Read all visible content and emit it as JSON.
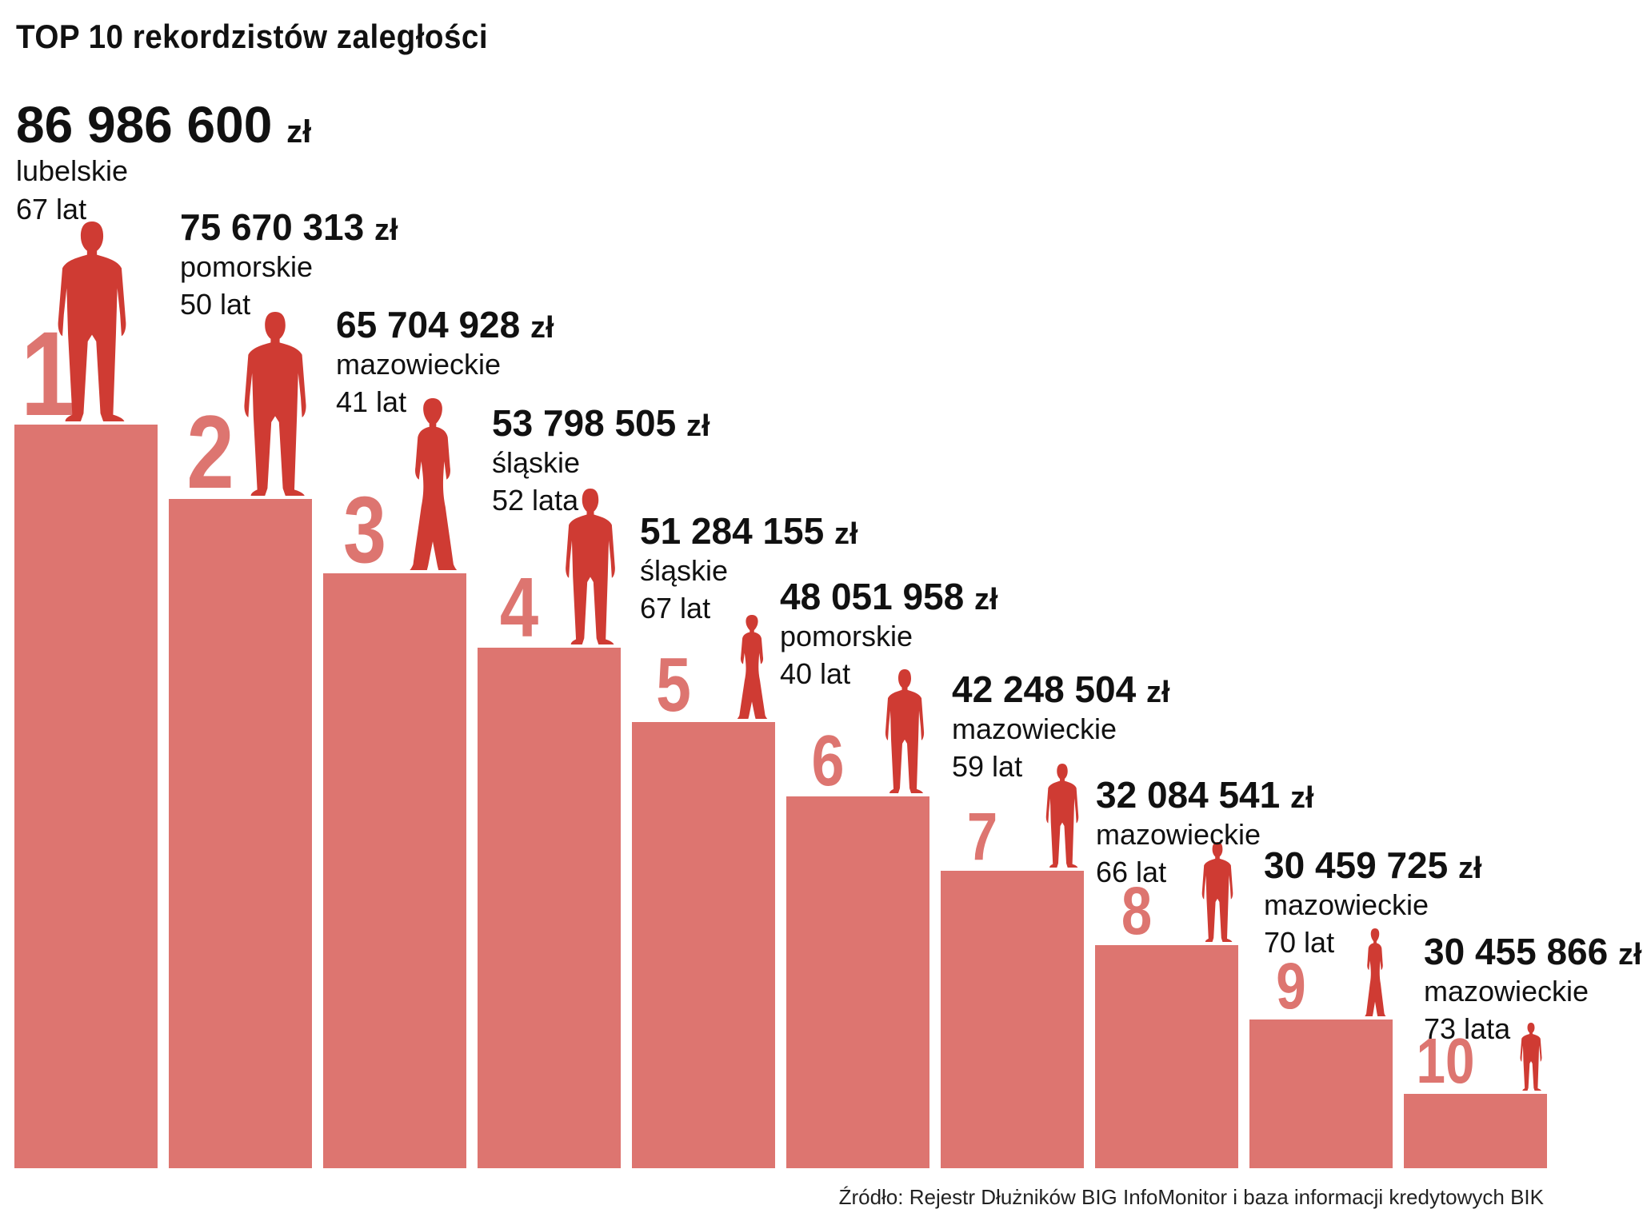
{
  "chart_data": {
    "type": "bar",
    "title": "TOP 10 rekordzistów zaległości",
    "source": "Źródło: Rejestr Dłużników BIG InfoMonitor i baza informacji kredytowych BIK",
    "colors": {
      "bar": "#dd7570",
      "figure": "#cf3b33",
      "text": "#111111"
    },
    "categories": [
      "1",
      "2",
      "3",
      "4",
      "5",
      "6",
      "7",
      "8",
      "9",
      "10"
    ],
    "values": [
      86986600,
      75670313,
      65704928,
      53798505,
      51284155,
      48051958,
      42248504,
      32084541,
      30459725,
      30455866
    ],
    "amount_labels": [
      "86 986 600",
      "75 670 313",
      "65 704 928",
      "53 798 505",
      "51 284 155",
      "48 051 958",
      "42 248 504",
      "32 084 541",
      "30 459 725",
      "30 455 866"
    ],
    "currency": "zł",
    "regions": [
      "lubelskie",
      "pomorskie",
      "mazowieckie",
      "śląskie",
      "śląskie",
      "pomorskie",
      "mazowieckie",
      "mazowieckie",
      "mazowieckie",
      "mazowieckie"
    ],
    "ages": [
      "67 lat",
      "50 lat",
      "41 lat",
      "52 lata",
      "67 lat",
      "40 lat",
      "59 lat",
      "66 lat",
      "70 lat",
      "73 lata"
    ],
    "figures": [
      "man-silhouette-icon",
      "man-silhouette-icon",
      "woman-silhouette-icon",
      "man-silhouette-icon",
      "woman-silhouette-icon",
      "man-silhouette-icon",
      "man-silhouette-icon",
      "man-silhouette-icon",
      "woman-silhouette-icon",
      "man-silhouette-icon"
    ],
    "grid": false,
    "legend": "none"
  }
}
